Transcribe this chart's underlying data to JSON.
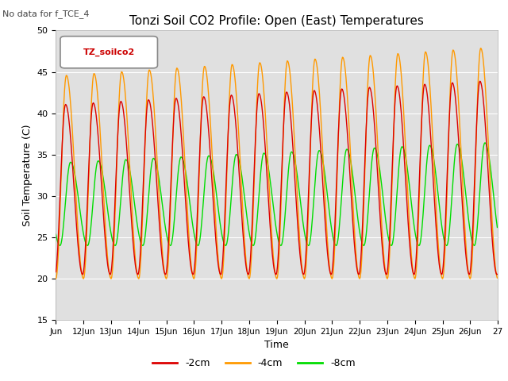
{
  "title": "Tonzi Soil CO2 Profile: Open (East) Temperatures",
  "note": "No data for f_TCE_4",
  "xlabel": "Time",
  "ylabel": "Soil Temperature (C)",
  "ylim": [
    15,
    50
  ],
  "xtick_labels": [
    "Jun",
    "12Jun",
    "13Jun",
    "14Jun",
    "15Jun",
    "16Jun",
    "17Jun",
    "18Jun",
    "19Jun",
    "20Jun",
    "21Jun",
    "22Jun",
    "23Jun",
    "24Jun",
    "25Jun",
    "26Jun",
    "27"
  ],
  "legend_label": "TZ_soilco2",
  "line_labels": [
    "-2cm",
    "-4cm",
    "-8cm"
  ],
  "line_colors": [
    "#dd0000",
    "#ff9900",
    "#00dd00"
  ],
  "background_color": "#e0e0e0",
  "num_days": 16
}
